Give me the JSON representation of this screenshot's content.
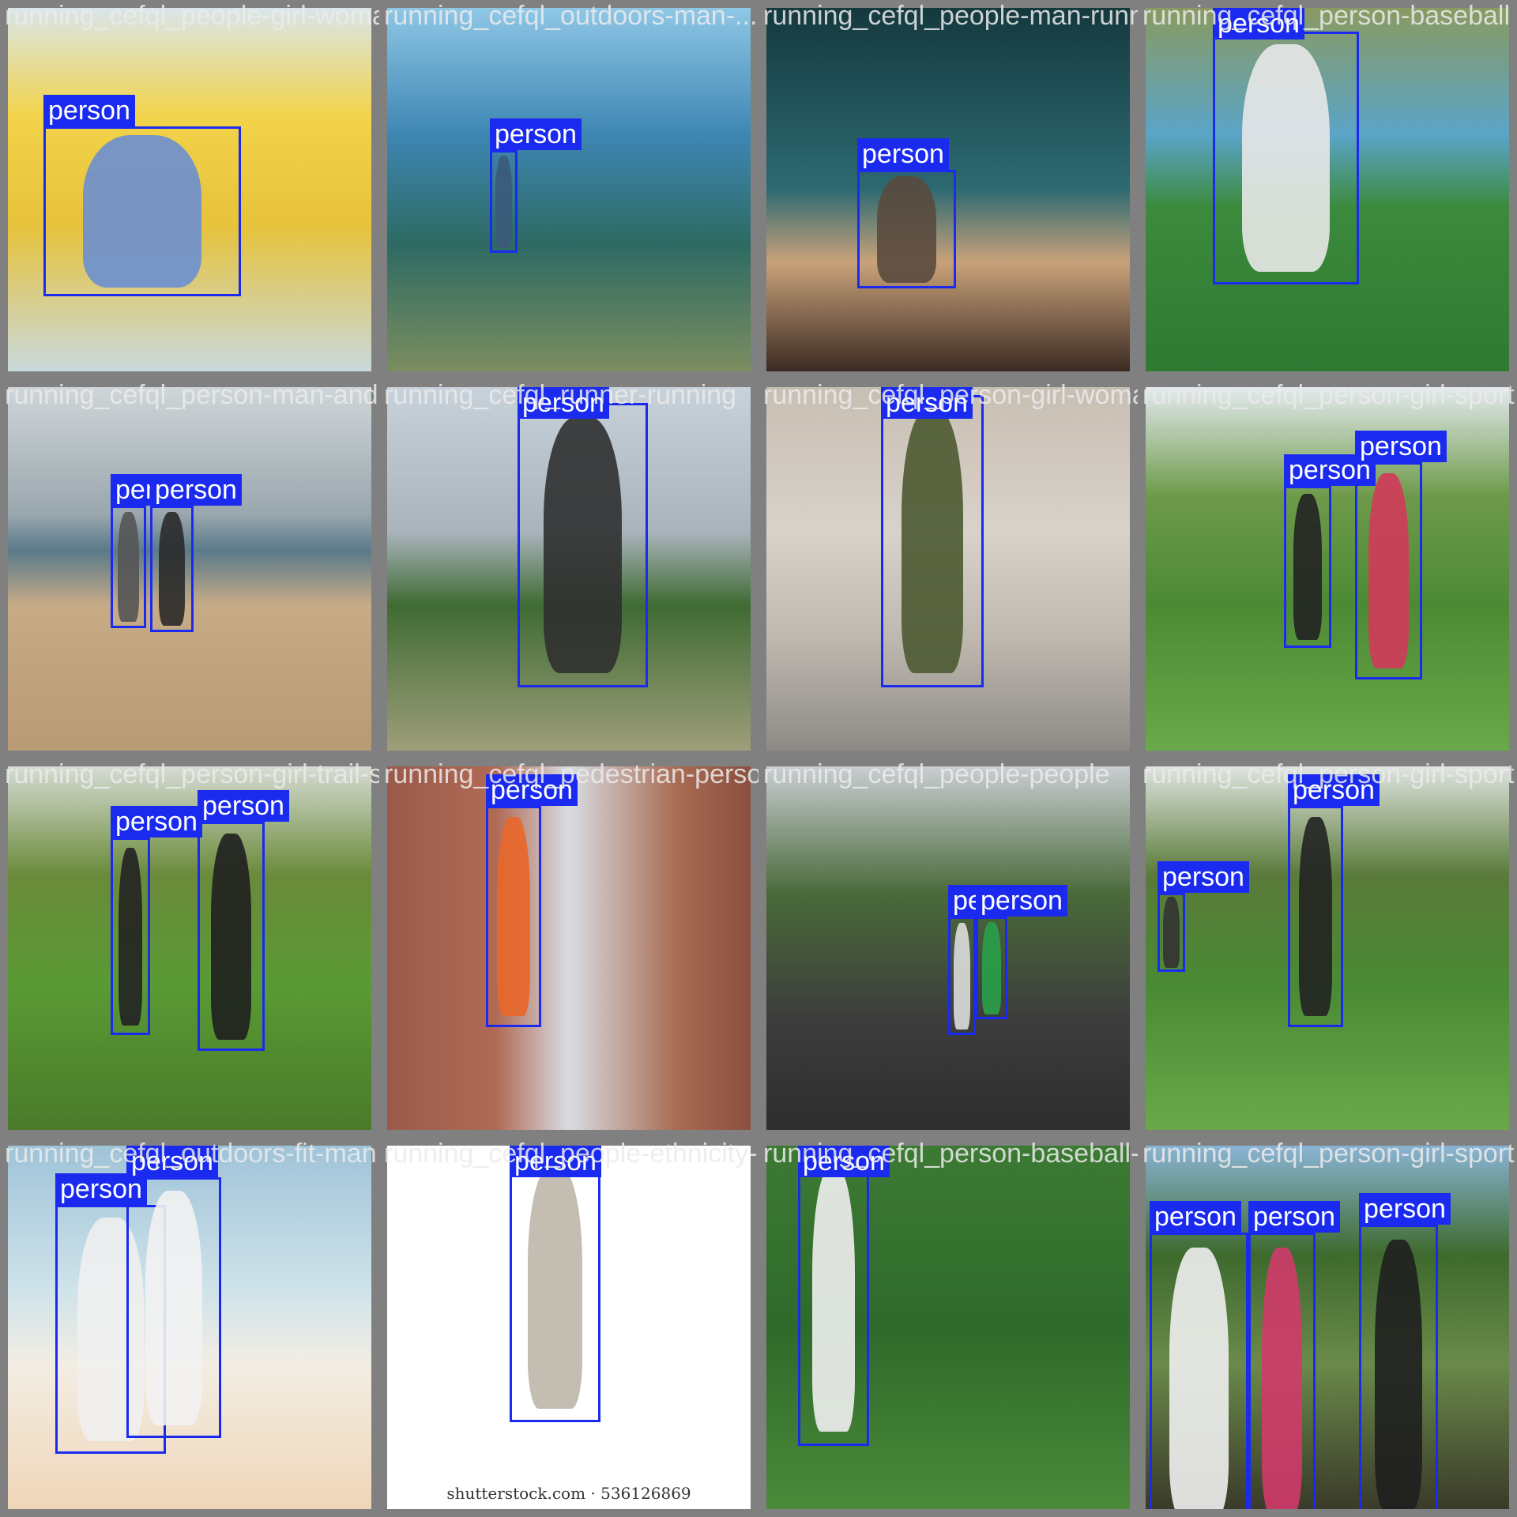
{
  "colors": {
    "box": "#1a2bef",
    "label_text": "#ffffff",
    "frame": "#808080"
  },
  "tiles": [
    {
      "title": "running_cefql_people-girl-woman...",
      "bg": "linear-gradient(180deg,#d9e6ea 0%,#f2d34a 30%,#e7c23b 60%,#c9d9dc 100%)",
      "boxes": [
        {
          "label": "person",
          "figure": "#6b8fd0"
        }
      ]
    },
    {
      "title": "running_cefql_outdoors-man-...",
      "bg": "linear-gradient(180deg,#8fc7e6 0%,#3e86b3 35%,#2d6a63 65%,#7b8e5f 100%)",
      "boxes": [
        {
          "label": "person",
          "figure": "#3b5a7a"
        }
      ]
    },
    {
      "title": "running_cefql_people-man-running",
      "bg": "linear-gradient(180deg,#14393e 0%,#2d6a72 50%,#c9a27a 70%,#3b2a22 100%)",
      "boxes": [
        {
          "label": "person",
          "figure": "#5a4a3e"
        }
      ]
    },
    {
      "title": "running_cefql_person-baseball",
      "bg": "linear-gradient(180deg,#8a9a60 0%,#5aa4c8 35%,#3c8a3c 55%,#2e7a33 100%)",
      "boxes": [
        {
          "label": "person",
          "figure": "#e8e8e8"
        }
      ]
    },
    {
      "title": "running_cefql_person-man-and-woman",
      "bg": "linear-gradient(180deg,#cfd6d9 0%,#9aa7ae 35%,#5a7a8a 45%,#c7ab87 60%,#b89a74 100%)",
      "boxes": [
        {
          "label": "person",
          "figure": "#555"
        },
        {
          "label": "person",
          "figure": "#2a2a2a"
        }
      ]
    },
    {
      "title": "running_cefql_runner-running",
      "bg": "linear-gradient(180deg,#c8d2da 0%,#a9b3bb 40%,#3f6b33 60%,#9e9e7a 100%)",
      "boxes": [
        {
          "label": "person",
          "figure": "#303030"
        }
      ]
    },
    {
      "title": "running_cefql_person-girl-woman",
      "bg": "linear-gradient(180deg,#c8bfb4 0%,#d9d2c8 40%,#bdb7ae 70%,#8d8a86 100%)",
      "boxes": [
        {
          "label": "person",
          "figure": "#4d5a32"
        }
      ]
    },
    {
      "title": "running_cefql_person-girl-sport",
      "bg": "linear-gradient(180deg,#e4eaee 0%,#6d9a4a 30%,#4d8a34 60%,#6aa84a 100%)",
      "boxes": [
        {
          "label": "person",
          "figure": "#222"
        },
        {
          "label": "person",
          "figure": "#d23a5a"
        }
      ]
    },
    {
      "title": "running_cefql_person-girl-trail-sport",
      "bg": "linear-gradient(180deg,#d6dcd4 0%,#6a8a3a 30%,#5a9a34 60%,#4a7a2a 100%)",
      "boxes": [
        {
          "label": "person",
          "figure": "#222"
        },
        {
          "label": "person",
          "figure": "#1f1f1f"
        }
      ]
    },
    {
      "title": "running_cefql_pedestrian-person",
      "bg": "linear-gradient(90deg,#9a5a4a 0%,#b06a55 30%,#d8dde2 50%,#a86a52 80%,#8a5040 100%)",
      "boxes": [
        {
          "label": "person",
          "figure": "#e8672a"
        }
      ]
    },
    {
      "title": "running_cefql_people-people",
      "bg": "linear-gradient(180deg,#c9ced2 0%,#4a6a3a 35%,#3c3c3c 70%,#2e2e2e 100%)",
      "boxes": [
        {
          "label": "person",
          "figure": "#ddd"
        },
        {
          "label": "person",
          "figure": "#2aa04a"
        }
      ]
    },
    {
      "title": "running_cefql_person-girl-sport",
      "bg": "linear-gradient(180deg,#dfe5e0 0%,#5a7a3a 30%,#4a8a34 60%,#6aa84a 100%)",
      "boxes": [
        {
          "label": "person",
          "figure": "#333"
        },
        {
          "label": "person",
          "figure": "#222"
        }
      ]
    },
    {
      "title": "running_cefql_outdoors-fit-man",
      "bg": "linear-gradient(180deg,#9fc3d8 0%,#cfe3ea 40%,#f2ede3 60%,#f0d6b8 100%)",
      "boxes": [
        {
          "label": "person",
          "figure": "#f0f0f0"
        },
        {
          "label": "person",
          "figure": "#f2f2f2"
        }
      ]
    },
    {
      "title": "running_cefql_people-ethnicity-man",
      "bg": "#ffffff",
      "watermark": "shutterstock.com · 536126869",
      "boxes": [
        {
          "label": "person",
          "figure": "#bdb7a8"
        }
      ]
    },
    {
      "title": "running_cefql_person-baseball-player",
      "bg": "linear-gradient(180deg,#3c7a34 0%,#2f6a2a 50%,#4a8a3a 100%)",
      "boxes": [
        {
          "label": "person",
          "figure": "#f0f0f0"
        }
      ]
    },
    {
      "title": "running_cefql_person-girl-sport",
      "bg": "linear-gradient(180deg,#8ab4d4 0%,#3e6a2e 30%,#6a8a4a 60%,#3a3a2a 100%)",
      "boxes": [
        {
          "label": "person",
          "figure": "#f0f0f0"
        },
        {
          "label": "person",
          "figure": "#d03a6a"
        },
        {
          "label": "person",
          "figure": "#1f1f1f"
        }
      ]
    }
  ]
}
